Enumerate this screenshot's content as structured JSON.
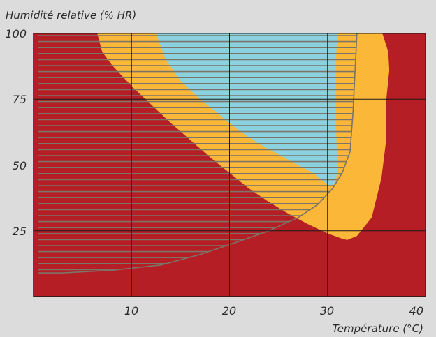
{
  "chart_data": {
    "type": "area",
    "title": "",
    "ylabel": "Humidité relative (% HR)",
    "xlabel": "Température (°C)",
    "xlim": [
      0,
      40
    ],
    "ylim": [
      0,
      100
    ],
    "x_ticks": [
      "10",
      "20",
      "30",
      "40"
    ],
    "y_ticks": [
      "100",
      "75",
      "50",
      "25"
    ],
    "x_tick_values": [
      10,
      20,
      30,
      40
    ],
    "y_tick_values": [
      100,
      75,
      50,
      25
    ],
    "grid": true,
    "colors": {
      "background_zone": "#b41e24",
      "middle_zone": "#fbb738",
      "inner_zone": "#8ad2e0",
      "hatch": "#7d7468",
      "grid": "#1a1a1a",
      "page": "#dcdcdc"
    },
    "series": [
      {
        "role": "middle-zone-boundary",
        "points": [
          [
            6.5,
            100
          ],
          [
            7.0,
            93
          ],
          [
            8.0,
            88
          ],
          [
            10.0,
            80
          ],
          [
            12.0,
            73
          ],
          [
            14.0,
            66
          ],
          [
            16.0,
            59.5
          ],
          [
            18.0,
            53
          ],
          [
            20.0,
            47
          ],
          [
            22.0,
            41
          ],
          [
            24.0,
            36
          ],
          [
            26.0,
            31.5
          ],
          [
            28.0,
            27.5
          ],
          [
            30.0,
            24
          ],
          [
            31.5,
            22
          ],
          [
            32.0,
            21.5
          ],
          [
            33.0,
            23
          ],
          [
            34.5,
            30
          ],
          [
            35.5,
            45
          ],
          [
            36.0,
            60
          ],
          [
            36.0,
            75
          ],
          [
            36.3,
            86
          ],
          [
            36.2,
            93
          ],
          [
            35.6,
            100
          ]
        ]
      },
      {
        "role": "inner-zone-boundary",
        "points": [
          [
            12.5,
            100
          ],
          [
            13.5,
            90
          ],
          [
            15.0,
            82
          ],
          [
            17.0,
            75
          ],
          [
            19.0,
            69
          ],
          [
            21.0,
            63
          ],
          [
            23.0,
            58
          ],
          [
            25.0,
            54
          ],
          [
            27.0,
            50
          ],
          [
            28.5,
            47
          ],
          [
            29.5,
            44
          ],
          [
            30.2,
            42
          ],
          [
            30.8,
            43
          ],
          [
            31.0,
            48
          ],
          [
            30.9,
            60
          ],
          [
            30.8,
            75
          ],
          [
            30.8,
            87
          ],
          [
            31.0,
            100
          ]
        ]
      },
      {
        "role": "hatched-zone-boundary",
        "points": [
          [
            0.5,
            100
          ],
          [
            0.5,
            9
          ],
          [
            3.0,
            9
          ],
          [
            8.0,
            10
          ],
          [
            13.0,
            12
          ],
          [
            17.0,
            16
          ],
          [
            21.0,
            21
          ],
          [
            24.0,
            25
          ],
          [
            27.0,
            30
          ],
          [
            29.0,
            35
          ],
          [
            30.5,
            41
          ],
          [
            31.5,
            47
          ],
          [
            32.3,
            55
          ],
          [
            32.6,
            70
          ],
          [
            32.8,
            85
          ],
          [
            33.0,
            100
          ]
        ]
      }
    ]
  }
}
